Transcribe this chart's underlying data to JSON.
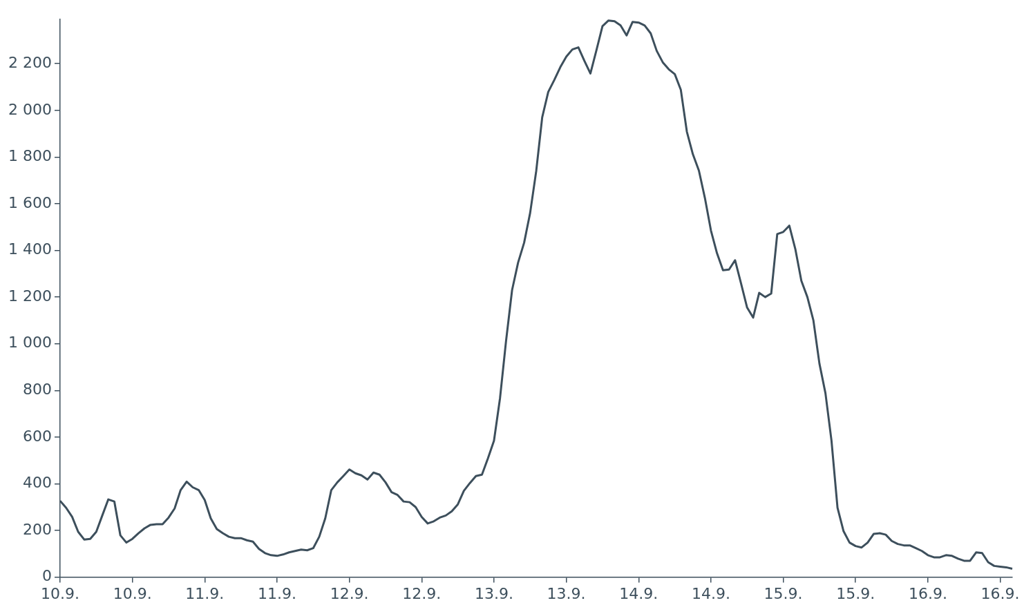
{
  "chart_data": {
    "type": "line",
    "categories": [
      "10.9.",
      null,
      null,
      null,
      null,
      null,
      null,
      null,
      null,
      null,
      null,
      null,
      "10.9.",
      null,
      null,
      null,
      null,
      null,
      null,
      null,
      null,
      null,
      null,
      null,
      "11.9.",
      null,
      null,
      null,
      null,
      null,
      null,
      null,
      null,
      null,
      null,
      null,
      "11.9.",
      null,
      null,
      null,
      null,
      null,
      null,
      null,
      null,
      null,
      null,
      null,
      "12.9.",
      null,
      null,
      null,
      null,
      null,
      null,
      null,
      null,
      null,
      null,
      null,
      "12.9.",
      null,
      null,
      null,
      null,
      null,
      null,
      null,
      null,
      null,
      null,
      null,
      "13.9.",
      null,
      null,
      null,
      null,
      null,
      null,
      null,
      null,
      null,
      null,
      null,
      "13.9.",
      null,
      null,
      null,
      null,
      null,
      null,
      null,
      null,
      null,
      null,
      null,
      "14.9.",
      null,
      null,
      null,
      null,
      null,
      null,
      null,
      null,
      null,
      null,
      null,
      "14.9.",
      null,
      null,
      null,
      null,
      null,
      null,
      null,
      null,
      null,
      null,
      null,
      "15.9.",
      null,
      null,
      null,
      null,
      null,
      null,
      null,
      null,
      null,
      null,
      null,
      "15.9.",
      null,
      null,
      null,
      null,
      null,
      null,
      null,
      null,
      null,
      null,
      null,
      "16.9.",
      null,
      null,
      null,
      null,
      null,
      null,
      null,
      null,
      null,
      null,
      null,
      "16.9.",
      null,
      null
    ],
    "series": [
      {
        "color": "#3d4f5c",
        "values": [
          327,
          297,
          258,
          194,
          161,
          164,
          194,
          264,
          333,
          324,
          179,
          148,
          164,
          188,
          209,
          224,
          227,
          227,
          255,
          294,
          373,
          409,
          385,
          373,
          330,
          252,
          206,
          188,
          173,
          167,
          167,
          158,
          152,
          121,
          103,
          94,
          91,
          97,
          106,
          112,
          118,
          115,
          124,
          173,
          252,
          373,
          406,
          433,
          461,
          445,
          436,
          418,
          448,
          439,
          406,
          364,
          352,
          324,
          321,
          300,
          258,
          230,
          239,
          255,
          264,
          282,
          312,
          370,
          403,
          433,
          439,
          509,
          585,
          767,
          1012,
          1230,
          1348,
          1433,
          1561,
          1739,
          1970,
          2079,
          2130,
          2185,
          2230,
          2261,
          2270,
          2212,
          2158,
          2258,
          2361,
          2385,
          2382,
          2364,
          2321,
          2379,
          2376,
          2364,
          2330,
          2255,
          2206,
          2176,
          2155,
          2088,
          1909,
          1812,
          1742,
          1624,
          1485,
          1388,
          1315,
          1318,
          1358,
          1258,
          1155,
          1112,
          1218,
          1200,
          1215,
          1470,
          1479,
          1506,
          1406,
          1270,
          1200,
          1100,
          915,
          788,
          585,
          297,
          197,
          148,
          133,
          127,
          148,
          185,
          188,
          182,
          155,
          142,
          136,
          136,
          124,
          112,
          94,
          85,
          85,
          94,
          91,
          79,
          70,
          70,
          106,
          103,
          64,
          48,
          45,
          42,
          36
        ]
      }
    ],
    "ylim": [
      0,
      2390
    ],
    "yticks": [
      0,
      200,
      400,
      600,
      800,
      {
        "value": 1000,
        "label": "1 000"
      },
      {
        "value": 1200,
        "label": "1 200"
      },
      {
        "value": 1400,
        "label": "1 400"
      },
      {
        "value": 1600,
        "label": "1 600"
      },
      {
        "value": 1800,
        "label": "1 800"
      },
      {
        "value": 2000,
        "label": "2 000"
      },
      {
        "value": 2200,
        "label": "2 200"
      }
    ],
    "marker": "none",
    "line_style": "solid",
    "legend": false,
    "grid": false
  }
}
